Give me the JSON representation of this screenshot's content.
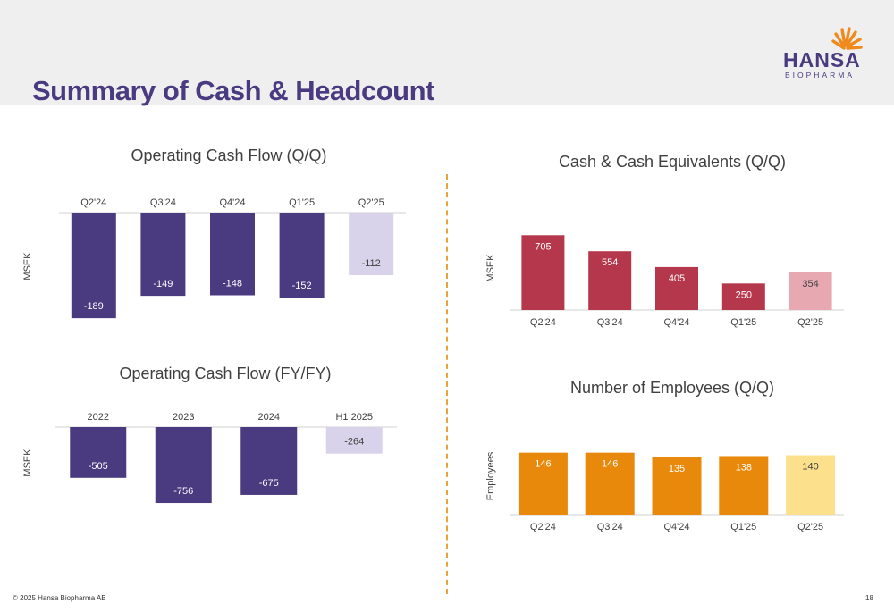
{
  "slide": {
    "title": "Summary of Cash & Headcount",
    "logo": {
      "name": "HANSA",
      "sub": "BIOPHARMA",
      "accent": "#f08a1c",
      "brand": "#4a3b80"
    },
    "footer": {
      "copyright": "© 2025 Hansa Biopharma AB",
      "page": "18"
    }
  },
  "chart_data": [
    {
      "id": "ocf-qq",
      "type": "bar",
      "title": "Operating Cash Flow (Q/Q)",
      "xlabel": "",
      "ylabel": "MSEK",
      "categories": [
        "Q2'24",
        "Q3'24",
        "Q4'24",
        "Q1'25",
        "Q2'25"
      ],
      "values": [
        -189,
        -149,
        -148,
        -152,
        -112
      ],
      "colors": [
        "#4a3b80",
        "#4a3b80",
        "#4a3b80",
        "#4a3b80",
        "#d8d3ea"
      ],
      "ylim": [
        -200,
        0
      ],
      "grid": false
    },
    {
      "id": "ocf-fy",
      "type": "bar",
      "title": "Operating Cash Flow (FY/FY)",
      "xlabel": "",
      "ylabel": "MSEK",
      "categories": [
        "2022",
        "2023",
        "2024",
        "H1 2025"
      ],
      "values": [
        -505,
        -756,
        -675,
        -264
      ],
      "colors": [
        "#4a3b80",
        "#4a3b80",
        "#4a3b80",
        "#d8d3ea"
      ],
      "ylim": [
        -800,
        0
      ],
      "grid": false
    },
    {
      "id": "cash-qq",
      "type": "bar",
      "title": "Cash & Cash Equivalents (Q/Q)",
      "xlabel": "",
      "ylabel": "MSEK",
      "categories": [
        "Q2'24",
        "Q3'24",
        "Q4'24",
        "Q1'25",
        "Q2'25"
      ],
      "values": [
        705,
        554,
        405,
        250,
        354
      ],
      "colors": [
        "#b5374c",
        "#b5374c",
        "#b5374c",
        "#b5374c",
        "#e7a8b2"
      ],
      "ylim": [
        0,
        800
      ],
      "grid": false
    },
    {
      "id": "emp-qq",
      "type": "bar",
      "title": "Number of Employees (Q/Q)",
      "xlabel": "",
      "ylabel": "Employees",
      "categories": [
        "Q2'24",
        "Q3'24",
        "Q4'24",
        "Q1'25",
        "Q2'25"
      ],
      "values": [
        146,
        146,
        135,
        138,
        140
      ],
      "colors": [
        "#e8890c",
        "#e8890c",
        "#e8890c",
        "#e8890c",
        "#fde08c"
      ],
      "ylim": [
        0,
        160
      ],
      "grid": false
    }
  ]
}
